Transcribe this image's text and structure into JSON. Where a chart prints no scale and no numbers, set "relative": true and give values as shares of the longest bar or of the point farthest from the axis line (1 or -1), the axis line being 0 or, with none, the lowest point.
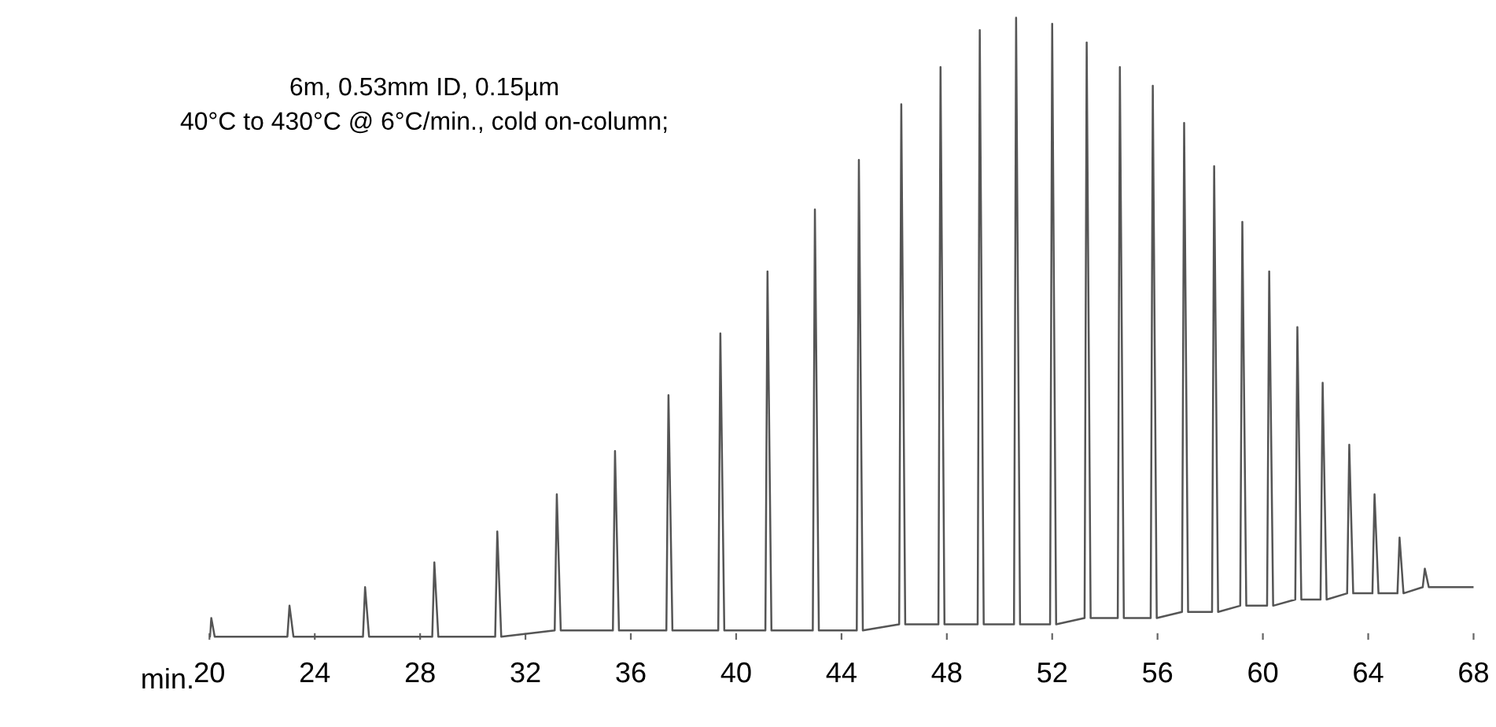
{
  "chart_data": {
    "type": "line",
    "relative": true,
    "xlabel": "min.",
    "annotations": [
      "6m, 0.53mm ID, 0.15µm",
      "40°C to 430°C @ 6°C/min., cold on-column;"
    ],
    "xlim": [
      20,
      68
    ],
    "xticks": [
      20,
      24,
      28,
      32,
      36,
      40,
      44,
      48,
      52,
      56,
      60,
      64,
      68
    ],
    "grid": false,
    "legend": false,
    "marker": "none",
    "line_style": "solid",
    "series": [
      {
        "color": "#555555",
        "x": [
          20.0,
          20.02,
          20.07,
          20.2,
          22.96,
          23.04,
          23.19,
          25.83,
          25.91,
          26.06,
          28.46,
          28.54,
          28.69,
          30.85,
          30.93,
          31.08,
          33.11,
          33.19,
          33.34,
          35.32,
          35.4,
          35.55,
          37.35,
          37.43,
          37.58,
          39.32,
          39.4,
          39.55,
          41.11,
          41.19,
          41.34,
          42.91,
          42.99,
          43.14,
          44.58,
          44.66,
          44.81,
          46.19,
          46.27,
          46.42,
          47.68,
          47.76,
          47.91,
          49.17,
          49.25,
          49.4,
          50.55,
          50.63,
          50.78,
          51.92,
          52.0,
          52.15,
          53.23,
          53.31,
          53.46,
          54.49,
          54.57,
          54.72,
          55.74,
          55.82,
          55.97,
          56.93,
          57.01,
          57.16,
          58.07,
          58.15,
          58.3,
          59.14,
          59.22,
          59.37,
          60.16,
          60.24,
          60.39,
          61.23,
          61.31,
          61.46,
          62.19,
          62.27,
          62.42,
          63.2,
          63.28,
          63.43,
          64.16,
          64.24,
          64.39,
          65.11,
          65.19,
          65.34,
          66.07,
          66.15,
          66.3,
          68.0
        ],
        "values": [
          0.0,
          0.0,
          0.03,
          0.0,
          0.0,
          0.05,
          0.0,
          0.0,
          0.08,
          0.0,
          0.0,
          0.12,
          0.0,
          0.0,
          0.17,
          0.0,
          0.01,
          0.23,
          0.01,
          0.01,
          0.3,
          0.01,
          0.01,
          0.39,
          0.01,
          0.01,
          0.49,
          0.01,
          0.01,
          0.59,
          0.01,
          0.01,
          0.69,
          0.01,
          0.01,
          0.77,
          0.01,
          0.02,
          0.86,
          0.02,
          0.02,
          0.92,
          0.02,
          0.02,
          0.98,
          0.02,
          0.02,
          1.0,
          0.02,
          0.02,
          0.99,
          0.02,
          0.03,
          0.96,
          0.03,
          0.03,
          0.92,
          0.03,
          0.03,
          0.89,
          0.03,
          0.04,
          0.83,
          0.04,
          0.04,
          0.76,
          0.04,
          0.05,
          0.67,
          0.05,
          0.05,
          0.59,
          0.05,
          0.06,
          0.5,
          0.06,
          0.06,
          0.41,
          0.06,
          0.07,
          0.31,
          0.07,
          0.07,
          0.23,
          0.07,
          0.07,
          0.16,
          0.07,
          0.08,
          0.11,
          0.08,
          0.08
        ]
      }
    ]
  }
}
